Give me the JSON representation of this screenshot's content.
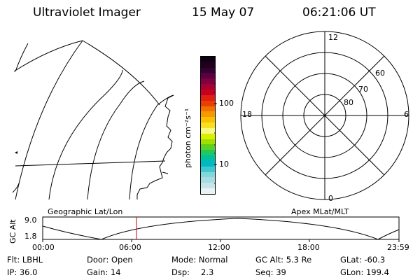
{
  "header": {
    "instrument": "Ultraviolet Imager",
    "date": "15 May 07",
    "time": "06:21:06 UT"
  },
  "colorbar": {
    "unit_label": "photon cm⁻²s⁻¹",
    "tick_100": "100",
    "tick_10": "10",
    "colors": [
      "#e8f4f4",
      "#c8e4e8",
      "#a8dce0",
      "#80d8dc",
      "#40c8d0",
      "#00b8c8",
      "#00c0a0",
      "#20c860",
      "#60d020",
      "#a0e000",
      "#d8f000",
      "#f8f880",
      "#f8e020",
      "#f8c000",
      "#f89800",
      "#f07000",
      "#e84000",
      "#e02010",
      "#c80020",
      "#a80030",
      "#800040",
      "#580040",
      "#380030",
      "#200020",
      "#100010"
    ]
  },
  "map_left": {
    "label": "Geographic Lat/Lon"
  },
  "polar": {
    "label": "Apex MLat/MLT",
    "mlt_labels": {
      "top": "12",
      "left": "18",
      "right": "6",
      "bottom": "0"
    },
    "lat_labels": [
      "60",
      "70",
      "80"
    ]
  },
  "altitude_plot": {
    "axis_label": "GC Alt",
    "y_max": "9.0",
    "y_min": "1.8",
    "x_ticks": [
      "00:00",
      "06:00",
      "12:00",
      "18:00",
      "23:59"
    ],
    "marker_time": "06:21",
    "line_color": "#000000",
    "marker_color": "#cc0000"
  },
  "status": {
    "filter": "Flt: LBHL",
    "door": "Door: Open",
    "mode": "Mode: Normal",
    "gc_alt": "GC Alt: 5.3 Re",
    "glat": "GLat: -60.3",
    "ip": "IP: 36.0",
    "gain": "Gain: 14",
    "dsp_label": "Dsp:",
    "dsp_value": "2.3",
    "seq": "Seq: 39",
    "glon": "GLon: 199.4"
  }
}
